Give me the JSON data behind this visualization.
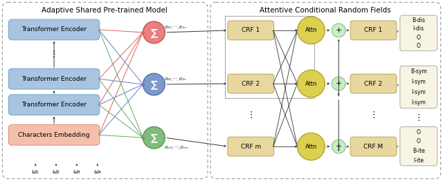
{
  "title_left": "Adaptive Shared Pre-trained Model",
  "title_right": "Attentive Conditional Random Fields",
  "bg_color": "#ffffff",
  "encoder_boxes": [
    {
      "label": "Transformer Encoder",
      "color": "#a8c4e0",
      "edge": "#7aaad0"
    },
    {
      "label": "Transformer Encoder",
      "color": "#a8c4e0",
      "edge": "#7aaad0"
    },
    {
      "label": "Transformer Encoder",
      "color": "#a8c4e0",
      "edge": "#7aaad0"
    },
    {
      "label": "Characters Embedding",
      "color": "#f5c0aa",
      "edge": "#e09080"
    }
  ],
  "sum_circles": [
    {
      "color": "#e88080",
      "edge": "#c05050"
    },
    {
      "color": "#8099cc",
      "edge": "#5070aa"
    },
    {
      "color": "#80bb80",
      "edge": "#50994f"
    }
  ],
  "crf_left_boxes": [
    {
      "label": "CRF 1",
      "color": "#e8d8a0",
      "edge": "#c0aa60"
    },
    {
      "label": "CRF 2",
      "color": "#e8d8a0",
      "edge": "#c0aa60"
    },
    {
      "label": "CRF m",
      "color": "#e8d8a0",
      "edge": "#c0aa60"
    }
  ],
  "attn_circles": [
    {
      "label": "Attn",
      "color": "#ddd050",
      "edge": "#aaa020"
    },
    {
      "label": "Attn",
      "color": "#ddd050",
      "edge": "#aaa020"
    },
    {
      "label": "Attn",
      "color": "#ddd050",
      "edge": "#aaa020"
    }
  ],
  "plus_circles": [
    {
      "color": "#c8eec8",
      "edge": "#88bb88"
    },
    {
      "color": "#c8eec8",
      "edge": "#88bb88"
    },
    {
      "color": "#c8eec8",
      "edge": "#88bb88"
    }
  ],
  "crf_right_boxes": [
    {
      "label": "CRF 1",
      "color": "#e8d8a0",
      "edge": "#c0aa60"
    },
    {
      "label": "CRF 2",
      "color": "#e8d8a0",
      "edge": "#c0aa60"
    },
    {
      "label": "CRF M",
      "color": "#e8d8a0",
      "edge": "#c0aa60"
    }
  ],
  "output_labels": [
    [
      "B-dis",
      "I-dis",
      "O",
      "O"
    ],
    [
      "B-sym",
      "I-sym",
      "I-sym",
      "I-sym"
    ],
    [
      "O",
      "O",
      "B-ite",
      "I-ite"
    ]
  ],
  "alpha_labels": [
    "α₁₀,⋯,α₁ₙ",
    "α₂₀,⋯,α₂ₙ",
    "αₘ₀,⋯,αₘₙ"
  ],
  "omega_labels": [
    "ω₁",
    "ω₂",
    "ω₃",
    "ω₄"
  ],
  "line_colors": [
    "#e06060",
    "#6080c8",
    "#60a860"
  ]
}
